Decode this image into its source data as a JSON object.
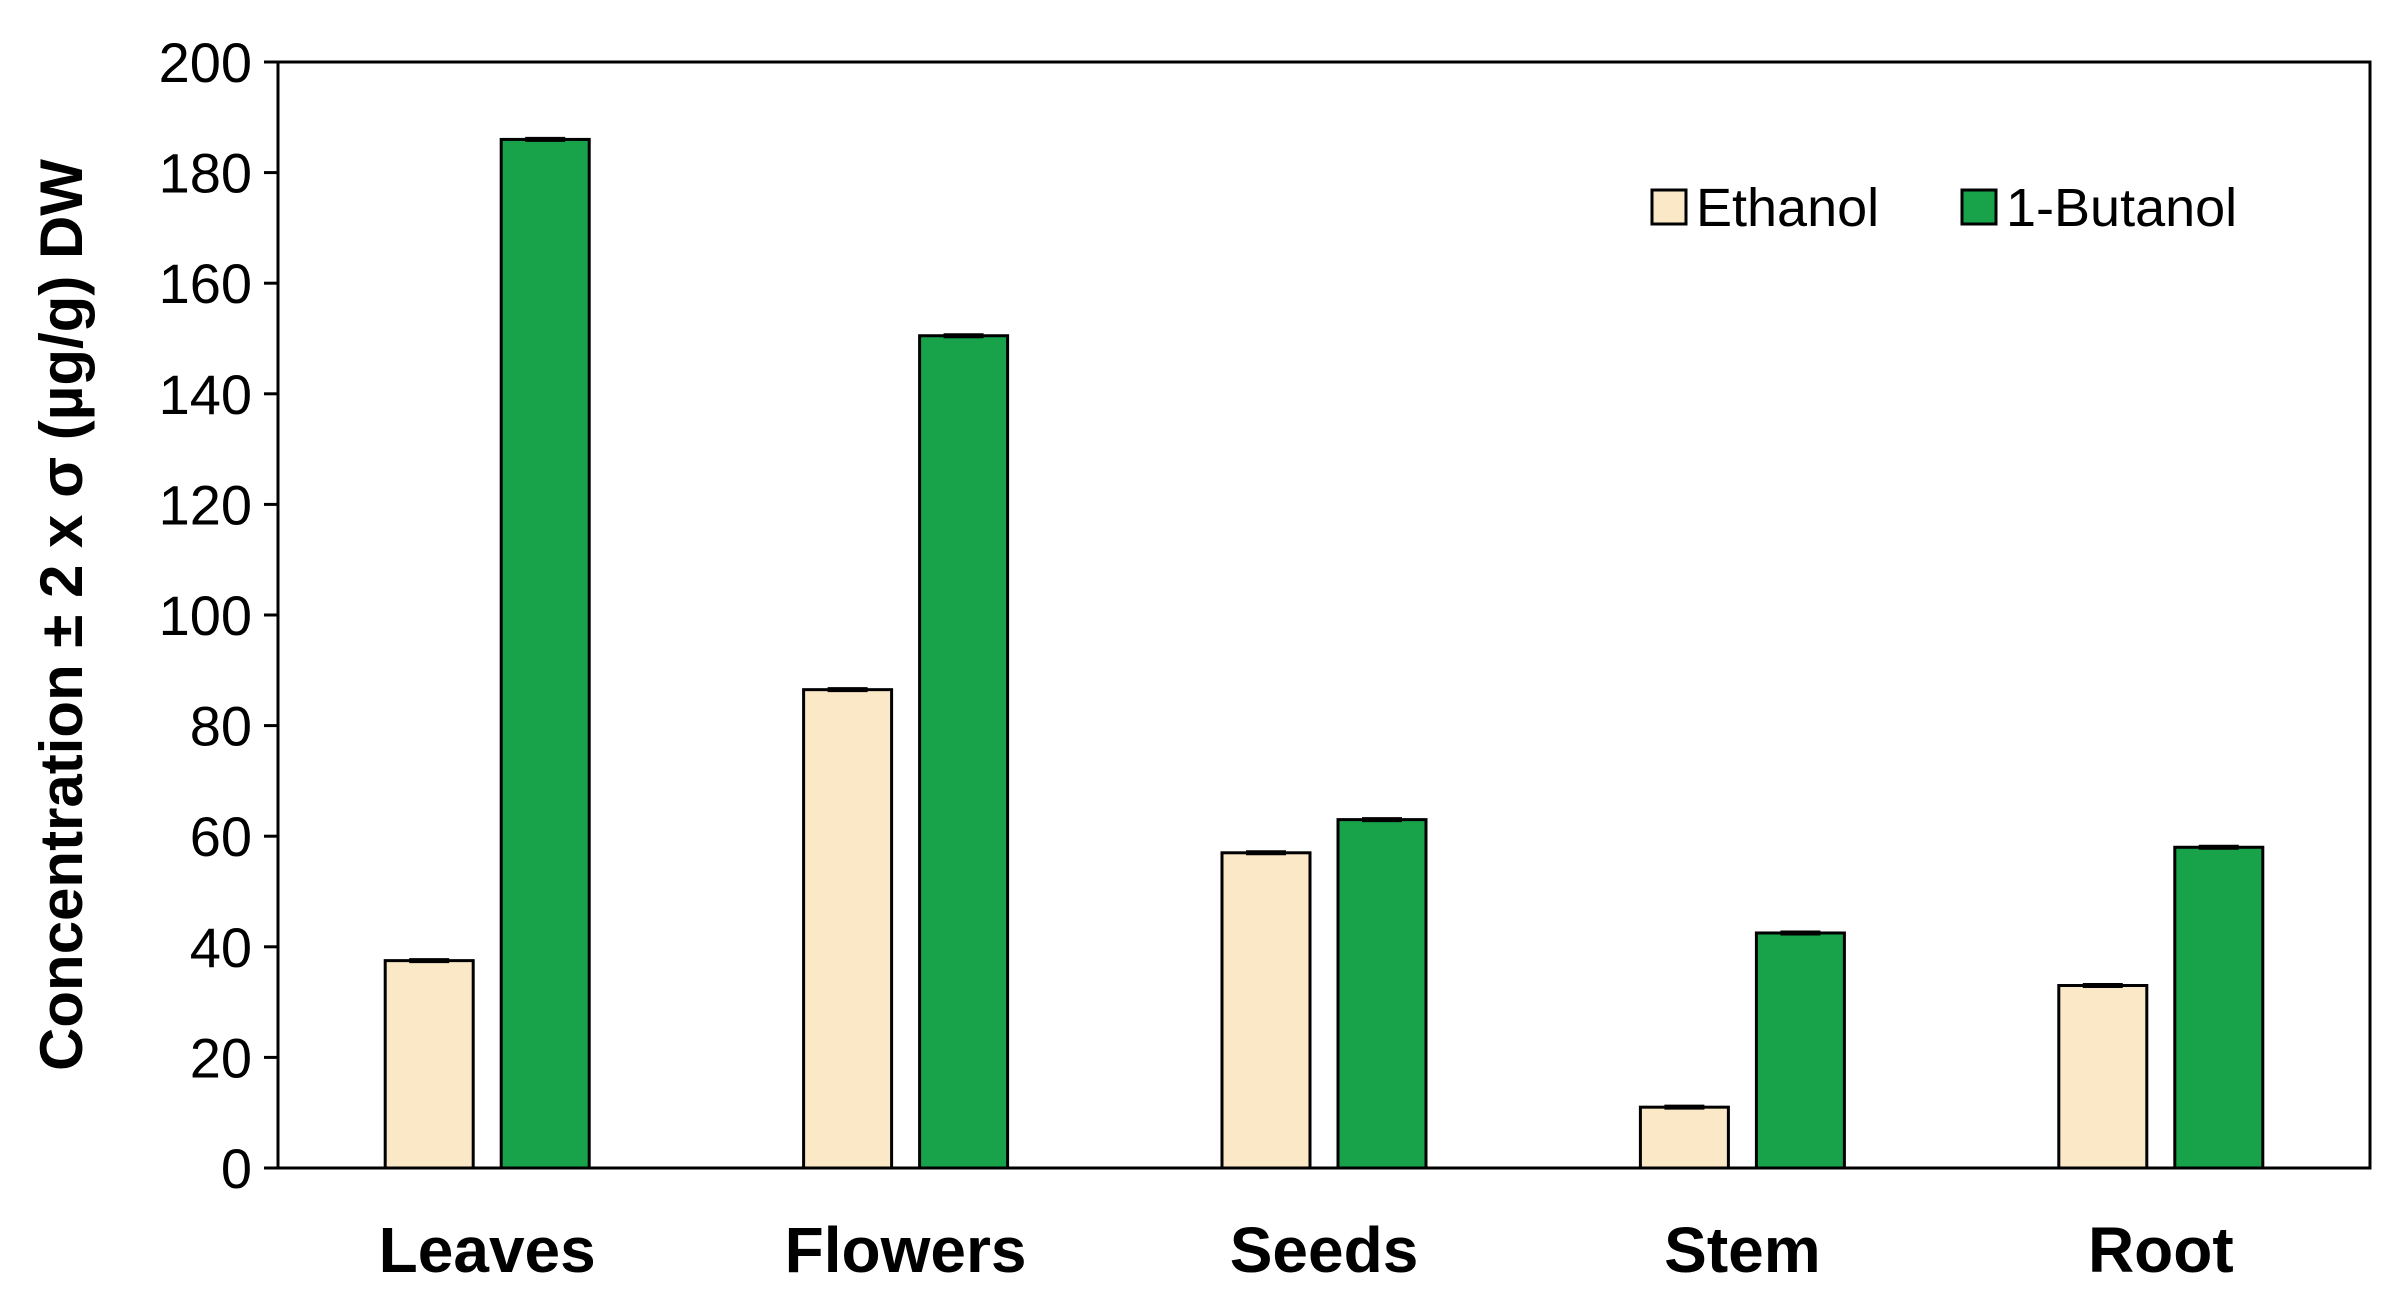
{
  "chart_data": {
    "type": "bar",
    "title": "",
    "xlabel": "",
    "ylabel": "Concentration ± 2 x σ (µg/g) DW",
    "ylim": [
      0,
      200
    ],
    "yticks": [
      0,
      20,
      40,
      60,
      80,
      100,
      120,
      140,
      160,
      180,
      200
    ],
    "grid": false,
    "legend_position": "top-right",
    "categories": [
      "Leaves",
      "Flowers",
      "Seeds",
      "Stem",
      "Root"
    ],
    "series": [
      {
        "name": "Ethanol",
        "color": "#fbe8c6",
        "values": [
          37.5,
          86.5,
          57,
          11,
          33
        ]
      },
      {
        "name": "1-Butanol",
        "color": "#18a24a",
        "values": [
          186,
          150.5,
          63,
          42.5,
          58
        ]
      }
    ]
  }
}
